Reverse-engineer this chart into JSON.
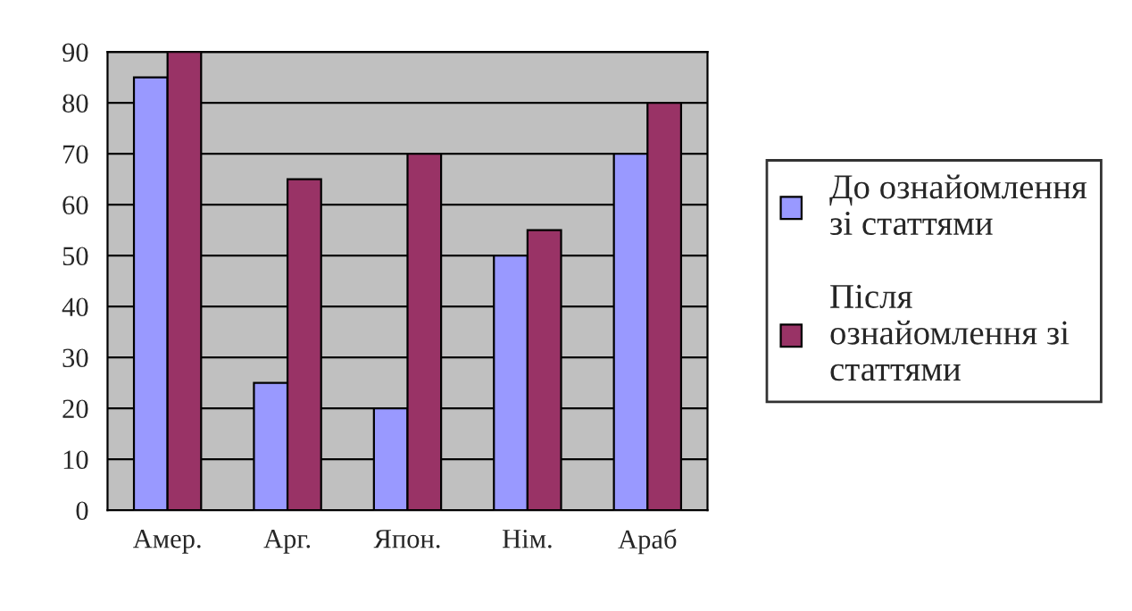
{
  "chart_data": {
    "type": "bar",
    "categories": [
      "Амер.",
      "Арг.",
      "Япон.",
      "Нім.",
      "Араб"
    ],
    "series": [
      {
        "name": "До ознайомлення\nзі статтями",
        "color": "#9999ff",
        "values": [
          85,
          25,
          20,
          50,
          70
        ]
      },
      {
        "name": "Після\nознайомлення зі\nстаттями",
        "color": "#993366",
        "values": [
          90,
          65,
          70,
          55,
          80
        ]
      }
    ],
    "ylim": [
      0,
      90
    ],
    "yticks": [
      0,
      10,
      20,
      30,
      40,
      50,
      60,
      70,
      80,
      90
    ],
    "grid": "y",
    "legend": "right"
  }
}
